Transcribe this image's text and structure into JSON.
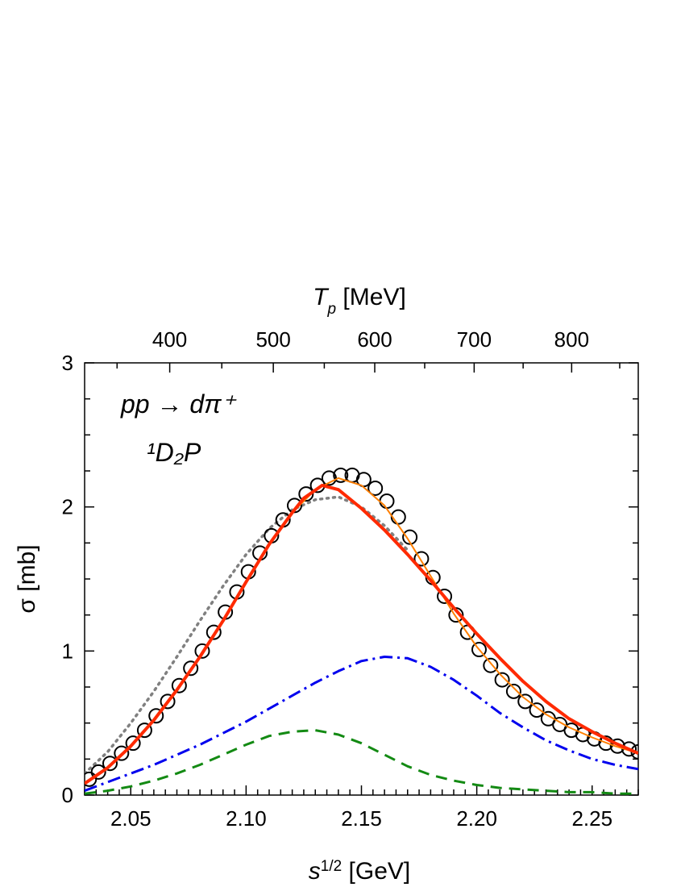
{
  "chart_data": {
    "type": "line",
    "x_axis": {
      "label_main": "s",
      "label_sup": "1/2",
      "label_unit": " [GeV]",
      "range": [
        2.03,
        2.27
      ],
      "ticks": [
        "2.05",
        "2.10",
        "2.15",
        "2.20",
        "2.25"
      ]
    },
    "y_axis": {
      "label_main": "σ",
      "label_unit": " [mb]",
      "range": [
        0,
        3
      ],
      "ticks": [
        "0",
        "1",
        "2",
        "3"
      ]
    },
    "top_axis": {
      "label_main": "T",
      "label_sub": "p",
      "label_unit": " [MeV]",
      "ticks": [
        "400",
        "500",
        "600",
        "700",
        "800"
      ],
      "tick_values": [
        400,
        500,
        600,
        700,
        800
      ]
    },
    "annotations": {
      "reaction": "pp → dπ⁺",
      "partial_wave": "¹D₂P"
    },
    "series": [
      {
        "style": "circles",
        "color": "#000000",
        "x": [
          2.032,
          2.036,
          2.041,
          2.046,
          2.051,
          2.056,
          2.061,
          2.066,
          2.071,
          2.076,
          2.081,
          2.086,
          2.091,
          2.096,
          2.101,
          2.106,
          2.111,
          2.116,
          2.121,
          2.126,
          2.131,
          2.136,
          2.141,
          2.146,
          2.151,
          2.156,
          2.161,
          2.166,
          2.171,
          2.176,
          2.181,
          2.186,
          2.191,
          2.196,
          2.201,
          2.206,
          2.211,
          2.216,
          2.221,
          2.226,
          2.231,
          2.236,
          2.241,
          2.246,
          2.251,
          2.256,
          2.261,
          2.266,
          2.27
        ],
        "y": [
          0.11,
          0.16,
          0.22,
          0.29,
          0.36,
          0.45,
          0.55,
          0.65,
          0.76,
          0.88,
          1.0,
          1.13,
          1.27,
          1.41,
          1.55,
          1.68,
          1.8,
          1.91,
          2.01,
          2.09,
          2.15,
          2.2,
          2.22,
          2.22,
          2.19,
          2.13,
          2.04,
          1.93,
          1.79,
          1.64,
          1.51,
          1.38,
          1.25,
          1.13,
          1.01,
          0.9,
          0.8,
          0.72,
          0.65,
          0.59,
          0.53,
          0.49,
          0.45,
          0.42,
          0.39,
          0.36,
          0.34,
          0.32,
          0.3
        ]
      },
      {
        "style": "thin-orange",
        "color": "#ff7f00",
        "x": [
          2.03,
          2.04,
          2.05,
          2.06,
          2.07,
          2.08,
          2.09,
          2.1,
          2.11,
          2.12,
          2.13,
          2.14,
          2.15,
          2.16,
          2.17,
          2.18,
          2.19,
          2.2,
          2.21,
          2.22,
          2.23,
          2.24,
          2.25,
          2.26,
          2.27
        ],
        "y": [
          0.08,
          0.19,
          0.34,
          0.52,
          0.73,
          0.96,
          1.21,
          1.48,
          1.74,
          1.96,
          2.12,
          2.2,
          2.15,
          2.01,
          1.78,
          1.52,
          1.26,
          1.03,
          0.84,
          0.68,
          0.56,
          0.47,
          0.4,
          0.34,
          0.29
        ]
      },
      {
        "style": "solid-red",
        "color": "#ff2a00",
        "x": [
          2.03,
          2.04,
          2.05,
          2.06,
          2.07,
          2.08,
          2.09,
          2.1,
          2.11,
          2.12,
          2.125,
          2.133,
          2.14,
          2.15,
          2.16,
          2.17,
          2.18,
          2.19,
          2.2,
          2.21,
          2.22,
          2.23,
          2.24,
          2.25,
          2.26,
          2.27
        ],
        "y": [
          0.08,
          0.19,
          0.34,
          0.52,
          0.73,
          0.96,
          1.21,
          1.48,
          1.74,
          1.96,
          2.06,
          2.15,
          2.12,
          1.99,
          1.84,
          1.67,
          1.49,
          1.3,
          1.12,
          0.95,
          0.79,
          0.65,
          0.53,
          0.44,
          0.36,
          0.29
        ]
      },
      {
        "style": "dotted-gray",
        "color": "#808080",
        "x": [
          2.03,
          2.04,
          2.05,
          2.06,
          2.07,
          2.08,
          2.09,
          2.1,
          2.11,
          2.12,
          2.13,
          2.14,
          2.15,
          2.16,
          2.17
        ],
        "y": [
          0.15,
          0.3,
          0.5,
          0.72,
          0.96,
          1.21,
          1.45,
          1.67,
          1.85,
          1.98,
          2.05,
          2.07,
          2.0,
          1.87,
          1.7
        ]
      },
      {
        "style": "dashdot-blue",
        "color": "#0000ee",
        "x": [
          2.03,
          2.04,
          2.05,
          2.06,
          2.07,
          2.08,
          2.09,
          2.1,
          2.11,
          2.12,
          2.13,
          2.14,
          2.15,
          2.16,
          2.17,
          2.18,
          2.19,
          2.2,
          2.21,
          2.22,
          2.23,
          2.24,
          2.25,
          2.26,
          2.27
        ],
        "y": [
          0.03,
          0.09,
          0.15,
          0.21,
          0.28,
          0.35,
          0.43,
          0.51,
          0.6,
          0.69,
          0.78,
          0.86,
          0.93,
          0.96,
          0.95,
          0.89,
          0.8,
          0.69,
          0.57,
          0.47,
          0.38,
          0.31,
          0.25,
          0.21,
          0.18
        ]
      },
      {
        "style": "dashed-green",
        "color": "#138a13",
        "x": [
          2.03,
          2.04,
          2.05,
          2.06,
          2.07,
          2.08,
          2.09,
          2.1,
          2.11,
          2.12,
          2.13,
          2.14,
          2.15,
          2.16,
          2.17,
          2.18,
          2.19,
          2.2,
          2.21,
          2.22,
          2.23,
          2.24,
          2.25,
          2.26,
          2.27
        ],
        "y": [
          0.01,
          0.03,
          0.06,
          0.1,
          0.15,
          0.21,
          0.28,
          0.35,
          0.41,
          0.44,
          0.45,
          0.42,
          0.36,
          0.28,
          0.2,
          0.14,
          0.1,
          0.07,
          0.05,
          0.04,
          0.03,
          0.02,
          0.02,
          0.01,
          0.01
        ]
      }
    ]
  }
}
